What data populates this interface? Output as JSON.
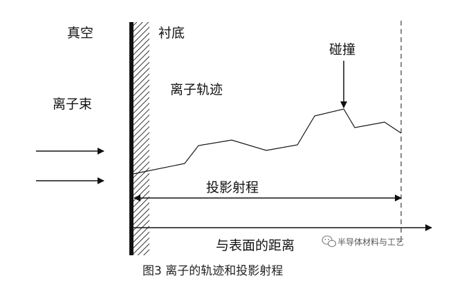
{
  "labels": {
    "vacuum": "真空",
    "substrate": "衬底",
    "ion_beam": "离子束",
    "ion_trajectory": "离子轨迹",
    "collision": "碰撞",
    "projected_range": "投影射程",
    "distance_from_surface": "与表面的距离"
  },
  "caption": "图3 离子的轨迹和投影射程",
  "watermark": {
    "text": "半导体材料与工艺",
    "icon": "wechat-logo-icon"
  },
  "colors": {
    "line": "#111111",
    "background": "#ffffff"
  }
}
